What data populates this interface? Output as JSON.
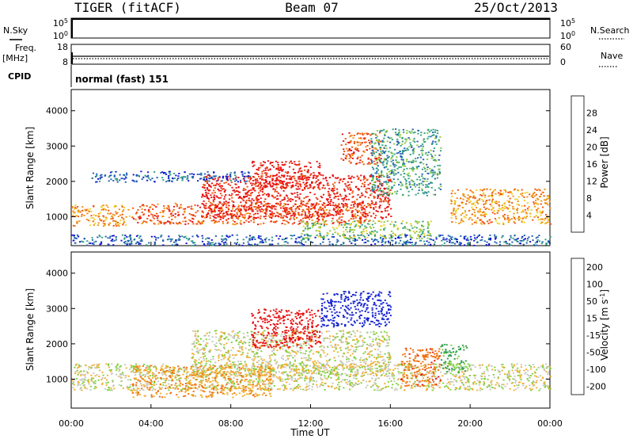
{
  "header": {
    "station": "TIGER (fitACF)",
    "beam": "Beam 07",
    "date": "25/Oct/2013"
  },
  "nsky_panel": {
    "left_label": "N.Sky",
    "right_label": "N.Search",
    "left_ticks": [
      "10^5",
      "10^0"
    ],
    "right_ticks": [
      "10^5",
      "10^0"
    ]
  },
  "freq_panel": {
    "left_label_line1": "Freq.",
    "left_label_line2": "[MHz]",
    "right_label": "Nave",
    "left_ticks": [
      "18",
      "8"
    ],
    "right_ticks": [
      "60",
      "0"
    ]
  },
  "cpid_panel": {
    "label": "CPID",
    "mode": "normal (fast) 151"
  },
  "x_axis": {
    "label": "Time UT",
    "ticks": [
      "00:00",
      "04:00",
      "08:00",
      "12:00",
      "16:00",
      "20:00",
      "00:00"
    ]
  },
  "chart_data": [
    {
      "type": "heatmap",
      "title": "",
      "xlabel": "",
      "ylabel": "Slant Range [km]",
      "ylim": [
        180,
        4600
      ],
      "y_ticks": [
        "1000",
        "2000",
        "3000",
        "4000"
      ],
      "colorbar_label": "Power [dB]",
      "colorbar_ticks": [
        "4",
        "8",
        "12",
        "16",
        "20",
        "24",
        "28"
      ],
      "colors": [
        "#1010d8",
        "#2060b0",
        "#30a080",
        "#90c840",
        "#f0d020",
        "#f09010",
        "#f05010",
        "#e81010"
      ],
      "structures": [
        {
          "x_start": 0.0,
          "x_end": 24.0,
          "range_start": 200,
          "range_end": 500,
          "level_db": 5
        },
        {
          "x_start": 0.0,
          "x_end": 2.9,
          "range_start": 750,
          "range_end": 1350,
          "level_db": 22
        },
        {
          "x_start": 3.0,
          "x_end": 15.0,
          "range_start": 800,
          "range_end": 1400,
          "level_db": 24
        },
        {
          "x_start": 6.5,
          "x_end": 16.0,
          "range_start": 950,
          "range_end": 2200,
          "level_db": 28
        },
        {
          "x_start": 9.0,
          "x_end": 12.5,
          "range_start": 1800,
          "range_end": 2600,
          "level_db": 28
        },
        {
          "x_start": 13.5,
          "x_end": 15.5,
          "range_start": 2500,
          "range_end": 3400,
          "level_db": 26
        },
        {
          "x_start": 11.5,
          "x_end": 18.0,
          "range_start": 400,
          "range_end": 900,
          "level_db": 14
        },
        {
          "x_start": 15.0,
          "x_end": 18.5,
          "range_start": 1600,
          "range_end": 3500,
          "level_db": 10
        },
        {
          "x_start": 19.0,
          "x_end": 24.0,
          "range_start": 800,
          "range_end": 1800,
          "level_db": 20
        },
        {
          "x_start": 1.0,
          "x_end": 9.0,
          "range_start": 2000,
          "range_end": 2300,
          "level_db": 7
        }
      ]
    },
    {
      "type": "heatmap",
      "title": "",
      "xlabel": "Time UT",
      "ylabel": "Slant Range [km]",
      "ylim": [
        180,
        4600
      ],
      "y_ticks": [
        "1000",
        "2000",
        "3000",
        "4000"
      ],
      "colorbar_label": "Velocity [m s^-1]",
      "colorbar_ticks": [
        "200",
        "100",
        "50",
        "15",
        "-15",
        "-50",
        "-100",
        "-200"
      ],
      "colors": [
        "#1020d0",
        "#2070a0",
        "#30a050",
        "#80d040",
        "#c8c8c0",
        "#f0b030",
        "#f07010",
        "#e81010"
      ],
      "structures": [
        {
          "x_start": 0.0,
          "x_end": 24.0,
          "range_start": 700,
          "range_end": 1450,
          "velocity": 0
        },
        {
          "x_start": 6.0,
          "x_end": 16.0,
          "range_start": 1100,
          "range_end": 2400,
          "velocity": 0
        },
        {
          "x_start": 9.0,
          "x_end": 12.5,
          "range_start": 1900,
          "range_end": 3000,
          "velocity": -150
        },
        {
          "x_start": 12.5,
          "x_end": 16.0,
          "range_start": 2500,
          "range_end": 3500,
          "velocity": 180
        },
        {
          "x_start": 16.5,
          "x_end": 18.5,
          "range_start": 800,
          "range_end": 1900,
          "velocity": -60
        },
        {
          "x_start": 18.5,
          "x_end": 19.8,
          "range_start": 1200,
          "range_end": 2000,
          "velocity": 40
        },
        {
          "x_start": 3.0,
          "x_end": 10.0,
          "range_start": 500,
          "range_end": 1400,
          "velocity": -30
        }
      ]
    }
  ]
}
